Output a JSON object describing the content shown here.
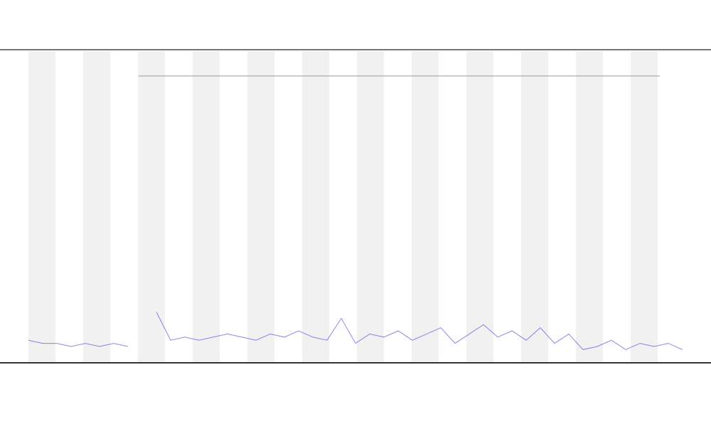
{
  "chart_data": {
    "type": "line",
    "x": [
      0,
      1,
      2,
      3,
      4,
      5,
      6,
      7,
      8,
      9,
      10,
      11,
      12,
      13,
      14,
      15,
      16,
      17,
      18,
      19,
      20,
      21,
      22,
      23,
      24,
      25,
      26,
      27,
      28,
      29,
      30,
      31,
      32,
      33,
      34,
      35,
      36,
      37,
      38,
      39,
      40,
      41,
      42,
      43,
      44,
      45,
      46
    ],
    "xlim": [
      0,
      46
    ],
    "ylim": [
      0,
      100
    ],
    "series": [
      {
        "color": "#3b3bdc",
        "values": [
          7,
          6,
          6,
          5,
          6,
          5,
          6,
          5,
          null,
          16,
          7,
          8,
          7,
          8,
          9,
          8,
          7,
          9,
          8,
          10,
          8,
          7,
          14,
          6,
          9,
          8,
          10,
          7,
          9,
          11,
          6,
          9,
          12,
          8,
          10,
          7,
          11,
          6,
          9,
          4,
          5,
          7,
          4,
          6,
          5,
          6,
          4
        ]
      }
    ]
  }
}
